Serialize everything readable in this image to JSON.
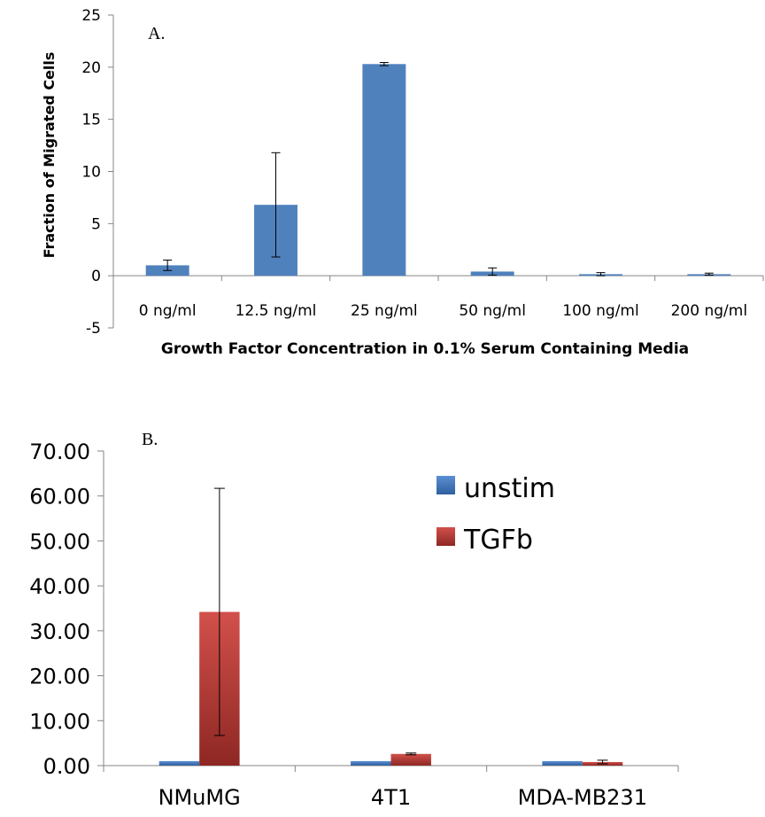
{
  "chart_data": [
    {
      "type": "bar",
      "panel_label": "A.",
      "title": "",
      "xlabel": "Growth Factor Concentration in 0.1% Serum Containing Media",
      "ylabel": "Fraction of Migrated Cells",
      "ylim": [
        -5,
        25
      ],
      "yticks": [
        "25",
        "20",
        "15",
        "10",
        "5",
        "0",
        "-5"
      ],
      "ytick_values": [
        25,
        20,
        15,
        10,
        5,
        0,
        -5
      ],
      "categories": [
        "0 ng/ml",
        "12.5 ng/ml",
        "25 ng/ml",
        "50 ng/ml",
        "100 ng/ml",
        "200 ng/ml"
      ],
      "values": [
        1.0,
        6.8,
        20.3,
        0.4,
        0.15,
        0.15
      ],
      "errors": [
        0.5,
        5.0,
        0.15,
        0.35,
        0.15,
        0.1
      ],
      "color": "#4f81bd",
      "grid": false
    },
    {
      "type": "bar",
      "panel_label": "B.",
      "title": "",
      "xlabel": "",
      "ylabel": "",
      "ylim": [
        0,
        70
      ],
      "yticks": [
        "70.00",
        "60.00",
        "50.00",
        "40.00",
        "30.00",
        "20.00",
        "10.00",
        "0.00"
      ],
      "ytick_values": [
        70,
        60,
        50,
        40,
        30,
        20,
        10,
        0
      ],
      "categories": [
        "NMuMG",
        "4T1",
        "MDA-MB231"
      ],
      "series": [
        {
          "name": "unstim",
          "values": [
            1.0,
            1.0,
            1.0
          ],
          "errors": [
            0,
            0,
            0
          ],
          "color": "#4f81bd"
        },
        {
          "name": "TGFb",
          "values": [
            34.2,
            2.6,
            0.8
          ],
          "errors": [
            27.5,
            0.2,
            0.4
          ],
          "color": "#c0504d"
        }
      ],
      "legend_position": "top-right",
      "grid": false
    }
  ]
}
